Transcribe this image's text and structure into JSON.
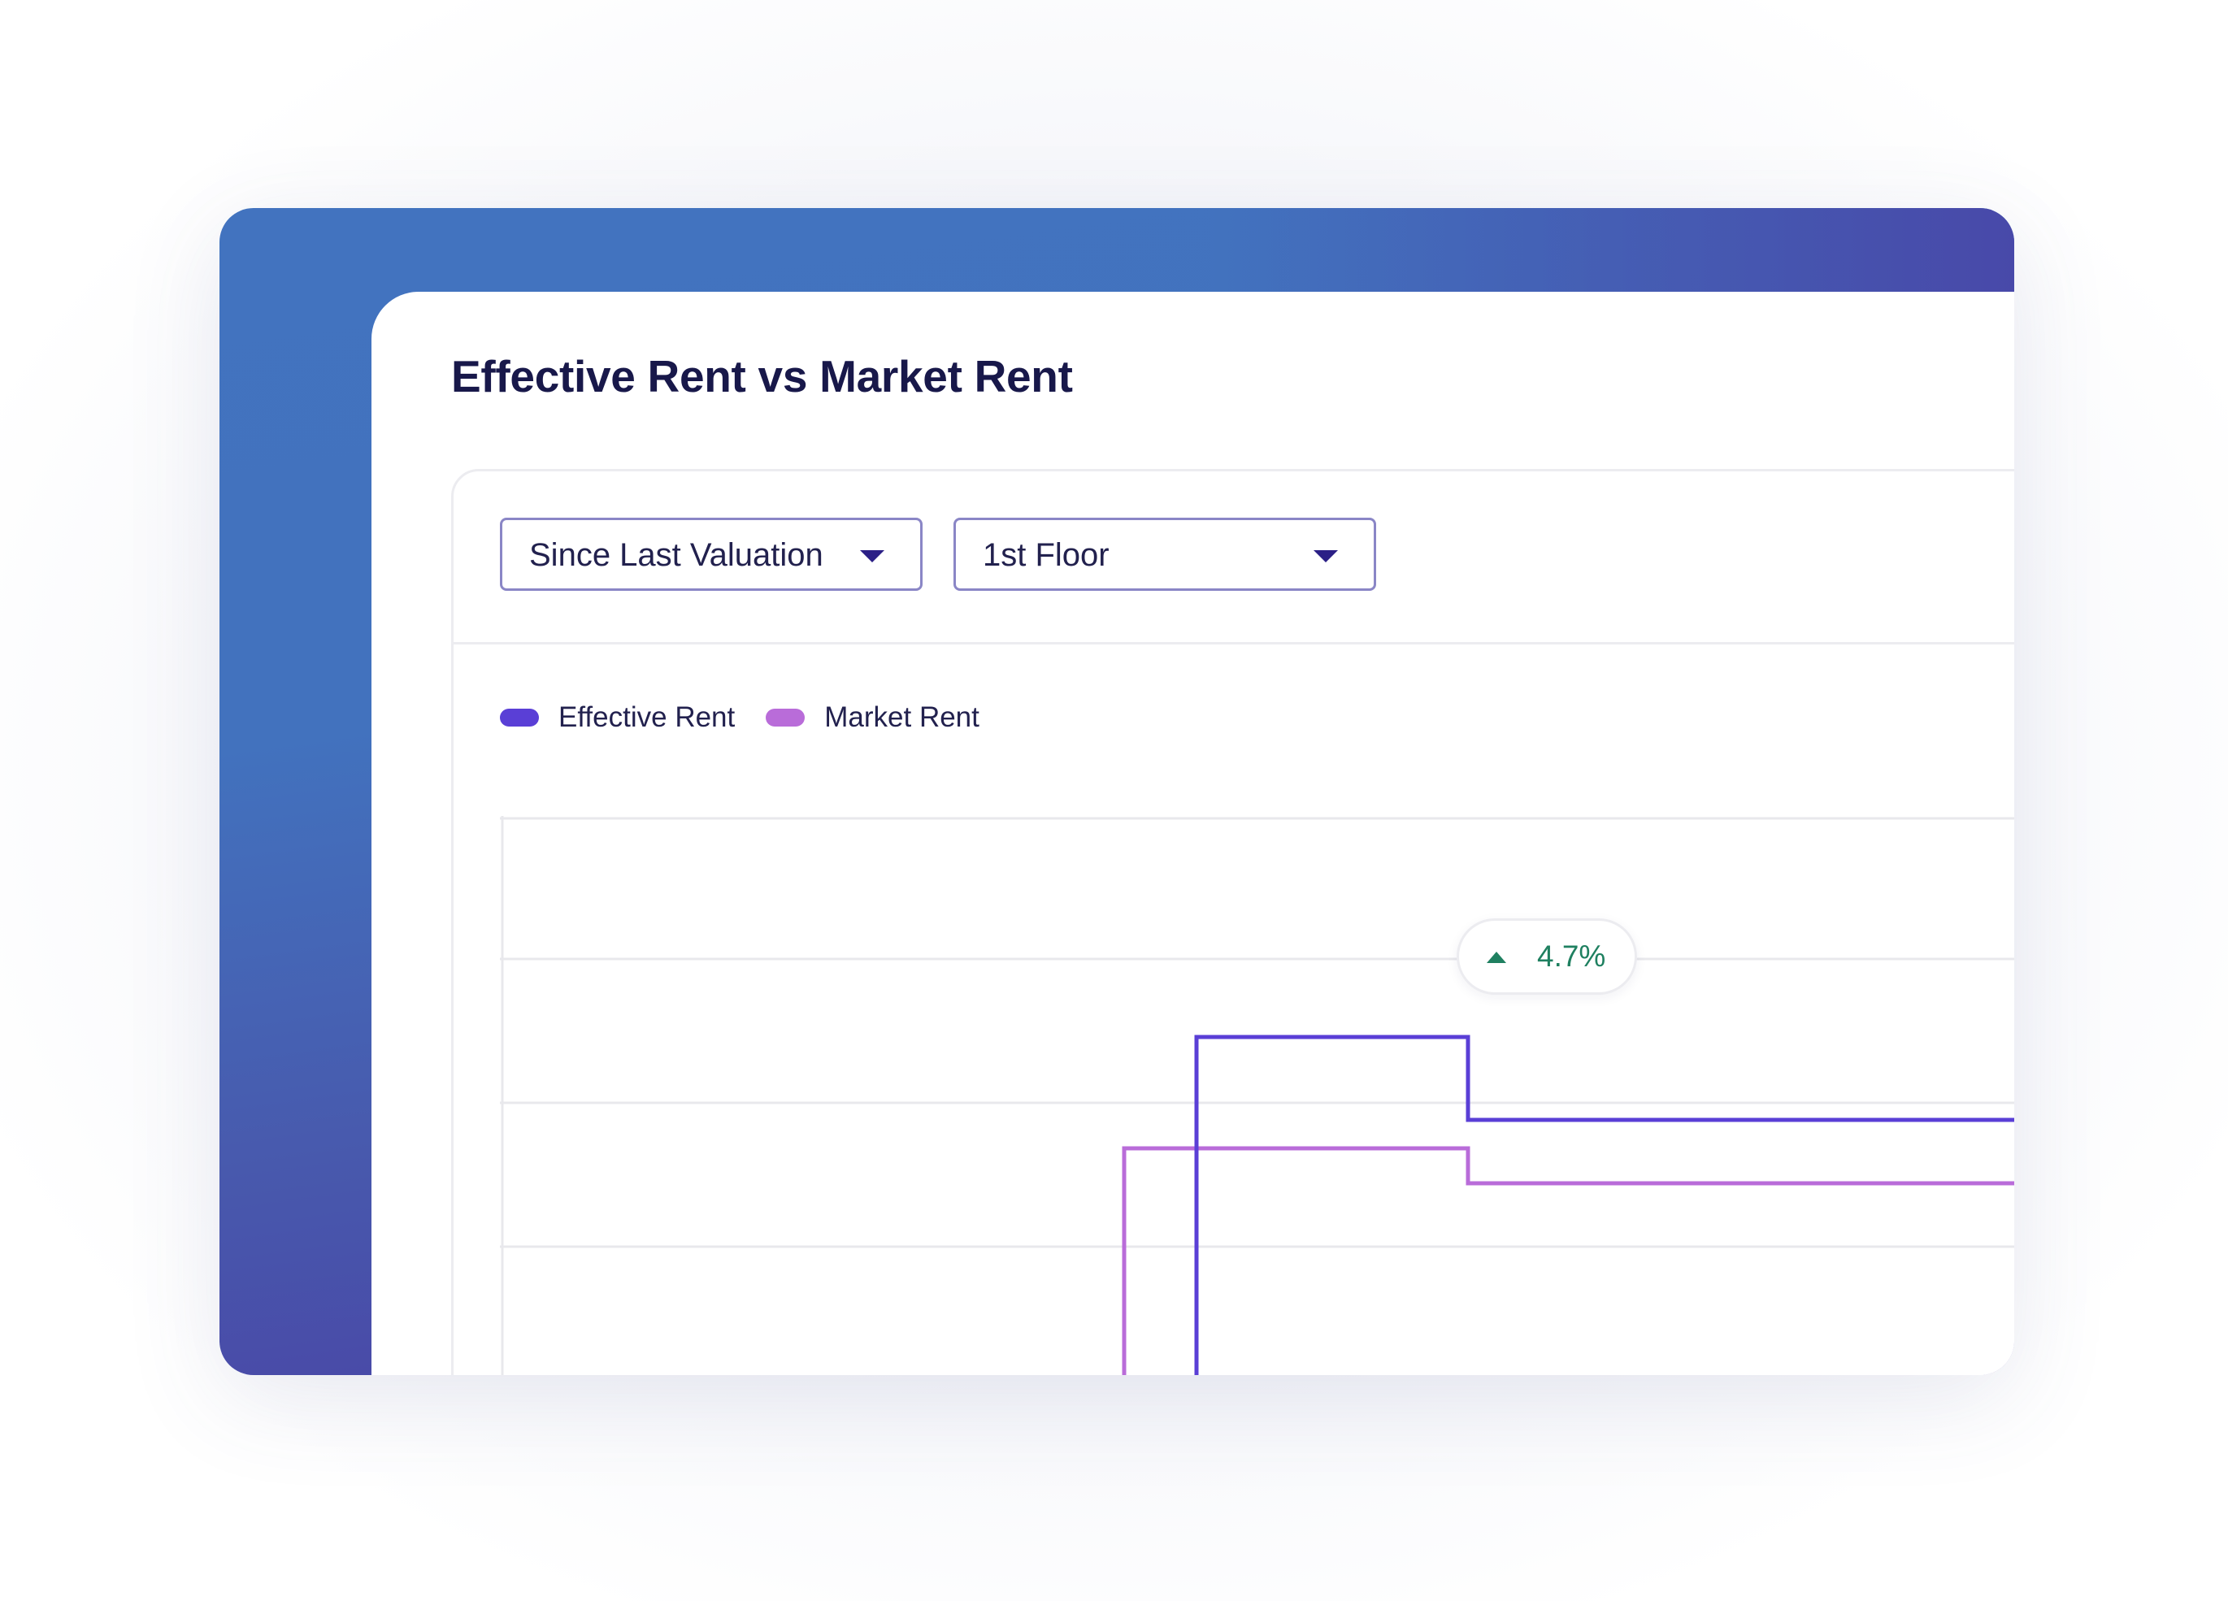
{
  "card": {
    "title": "Effective Rent vs Market Rent"
  },
  "filters": {
    "period": {
      "selected": "Since Last Valuation"
    },
    "floor": {
      "selected": "1st Floor"
    }
  },
  "legend": [
    {
      "label": "Effective Rent",
      "color": "#5a3fd6"
    },
    {
      "label": "Market Rent",
      "color": "#b96cd9"
    }
  ],
  "change_badge": {
    "value": "4.7%",
    "direction": "up",
    "icon": "triangle-up-icon",
    "color": "#1f8060"
  },
  "colors": {
    "frame_gradient_start": "#4273bf",
    "frame_gradient_end": "#4a3ca3",
    "title": "#18184a",
    "select_border": "#8a86c6",
    "caret": "#2b1f86"
  },
  "chart_data": {
    "type": "line",
    "step": true,
    "grid": true,
    "series": [
      {
        "name": "Effective Rent",
        "color": "#5a3fd6"
      },
      {
        "name": "Market Rent",
        "color": "#b96cd9"
      }
    ]
  }
}
